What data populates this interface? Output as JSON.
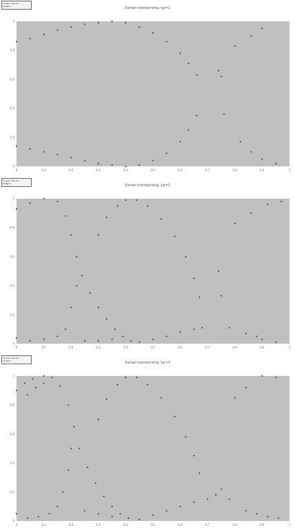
{
  "chart_data": [
    {
      "type": "scatter",
      "title": "Owner-membership, kp=1",
      "badge": "Cluster theorem\nbadge 1",
      "xlim": [
        0,
        1
      ],
      "ylim": [
        0,
        1
      ],
      "xticks": [
        "0",
        "0.1",
        "0.2",
        "0.3",
        "0.4",
        "0.5",
        "0.6",
        "0.7",
        "0.8",
        "0.9",
        "1"
      ],
      "yticks": [
        "0",
        "0.2",
        "0.4",
        "0.6",
        "0.8",
        "1"
      ],
      "background": "#c0c0c0",
      "grid": false,
      "series": [
        {
          "points": [
            [
              0,
              0.86
            ],
            [
              0.05,
              0.88
            ],
            [
              0.1,
              0.91
            ],
            [
              0.15,
              0.94
            ],
            [
              0.2,
              0.96
            ],
            [
              0.25,
              0.98
            ],
            [
              0.3,
              0.99
            ],
            [
              0.35,
              1.0
            ],
            [
              0.4,
              0.99
            ],
            [
              0.45,
              0.96
            ],
            [
              0.5,
              0.92
            ],
            [
              0.55,
              0.86
            ],
            [
              0.6,
              0.78
            ],
            [
              0.63,
              0.71
            ],
            [
              0.66,
              0.63
            ],
            [
              0.0,
              0.14
            ],
            [
              0.05,
              0.12
            ],
            [
              0.1,
              0.1
            ],
            [
              0.15,
              0.08
            ],
            [
              0.2,
              0.06
            ],
            [
              0.25,
              0.04
            ],
            [
              0.3,
              0.02
            ],
            [
              0.35,
              0.01
            ],
            [
              0.4,
              0.0
            ],
            [
              0.45,
              0.01
            ],
            [
              0.5,
              0.04
            ],
            [
              0.55,
              0.09
            ],
            [
              0.6,
              0.17
            ],
            [
              0.63,
              0.25
            ],
            [
              0.66,
              0.35
            ],
            [
              0.74,
              0.66
            ],
            [
              0.75,
              0.62
            ],
            [
              0.8,
              0.83
            ],
            [
              0.86,
              0.9
            ],
            [
              0.9,
              0.95
            ],
            [
              0.76,
              0.36
            ],
            [
              0.82,
              0.17
            ],
            [
              0.86,
              0.1
            ],
            [
              0.9,
              0.05
            ],
            [
              0.95,
              0.02
            ]
          ]
        }
      ]
    },
    {
      "type": "scatter",
      "title": "Owner-membership, kp=2",
      "badge": "Cluster theorem\nbadge 2",
      "xlim": [
        0,
        1
      ],
      "ylim": [
        0,
        1
      ],
      "xticks": [
        "0",
        "0.1",
        "0.2",
        "0.3",
        "0.4",
        "0.5",
        "0.6",
        "0.7",
        "0.8",
        "0.9",
        "1"
      ],
      "yticks": [
        "0",
        "0.2",
        "0.4",
        "0.6",
        "0.8",
        "1"
      ],
      "background": "#c0c0c0",
      "grid": false,
      "series": [
        {
          "points": [
            [
              0,
              0.93
            ],
            [
              0.05,
              0.97
            ],
            [
              0.1,
              1.0
            ],
            [
              0.15,
              0.98
            ],
            [
              0.18,
              0.88
            ],
            [
              0.2,
              0.75
            ],
            [
              0.22,
              0.6
            ],
            [
              0.24,
              0.47
            ],
            [
              0.27,
              0.35
            ],
            [
              0.3,
              0.25
            ],
            [
              0.33,
              0.17
            ],
            [
              0.36,
              0.1
            ],
            [
              0.39,
              0.05
            ],
            [
              0.42,
              0.02
            ],
            [
              0.45,
              0.01
            ],
            [
              0.5,
              0.03
            ],
            [
              0.55,
              0.05
            ],
            [
              0.6,
              0.08
            ],
            [
              0.65,
              0.1
            ],
            [
              0.68,
              0.11
            ],
            [
              0.3,
              0.75
            ],
            [
              0.33,
              0.87
            ],
            [
              0.37,
              0.95
            ],
            [
              0.4,
              0.99
            ],
            [
              0.44,
              0.99
            ],
            [
              0.48,
              0.95
            ],
            [
              0.53,
              0.86
            ],
            [
              0.58,
              0.74
            ],
            [
              0.62,
              0.6
            ],
            [
              0.65,
              0.45
            ],
            [
              0.67,
              0.32
            ],
            [
              0.22,
              0.4
            ],
            [
              0.2,
              0.25
            ],
            [
              0.18,
              0.1
            ],
            [
              0.15,
              0.05
            ],
            [
              0.1,
              0.03
            ],
            [
              0.05,
              0.02
            ],
            [
              0.0,
              0.04
            ],
            [
              0.25,
              0.02
            ],
            [
              0.3,
              0.02
            ],
            [
              0.35,
              0.03
            ],
            [
              0.74,
              0.5
            ],
            [
              0.75,
              0.33
            ],
            [
              0.8,
              0.83
            ],
            [
              0.86,
              0.9
            ],
            [
              0.92,
              0.96
            ],
            [
              0.97,
              0.98
            ],
            [
              0.78,
              0.11
            ],
            [
              0.84,
              0.07
            ],
            [
              0.88,
              0.05
            ],
            [
              0.9,
              0.03
            ],
            [
              0.95,
              0.01
            ]
          ]
        }
      ]
    },
    {
      "type": "scatter",
      "title": "Owner-membership, kp=3",
      "badge": "Cluster theorem\nbadge 3",
      "xlim": [
        0,
        1
      ],
      "ylim": [
        0,
        1
      ],
      "xticks": [
        "0",
        "0.1",
        "0.2",
        "0.3",
        "0.4",
        "0.5",
        "0.6",
        "0.7",
        "0.8",
        "0.9",
        "1"
      ],
      "yticks": [
        "0",
        "0.2",
        "0.4",
        "0.6",
        "0.8",
        "1"
      ],
      "background": "#c0c0c0",
      "grid": false,
      "series": [
        {
          "points": [
            [
              0,
              0.9
            ],
            [
              0.03,
              0.95
            ],
            [
              0.06,
              0.98
            ],
            [
              0.1,
              1.0
            ],
            [
              0.13,
              0.99
            ],
            [
              0.16,
              0.93
            ],
            [
              0.19,
              0.8
            ],
            [
              0.21,
              0.65
            ],
            [
              0.23,
              0.5
            ],
            [
              0.26,
              0.37
            ],
            [
              0.29,
              0.26
            ],
            [
              0.32,
              0.17
            ],
            [
              0.35,
              0.1
            ],
            [
              0.38,
              0.05
            ],
            [
              0.41,
              0.02
            ],
            [
              0.45,
              0.01
            ],
            [
              0.5,
              0.04
            ],
            [
              0.55,
              0.07
            ],
            [
              0.6,
              0.1
            ],
            [
              0.65,
              0.13
            ],
            [
              0.7,
              0.15
            ],
            [
              0.3,
              0.7
            ],
            [
              0.33,
              0.84
            ],
            [
              0.37,
              0.94
            ],
            [
              0.4,
              0.99
            ],
            [
              0.44,
              0.99
            ],
            [
              0.48,
              0.94
            ],
            [
              0.53,
              0.85
            ],
            [
              0.58,
              0.72
            ],
            [
              0.62,
              0.58
            ],
            [
              0.65,
              0.45
            ],
            [
              0.67,
              0.33
            ],
            [
              0.2,
              0.5
            ],
            [
              0.19,
              0.35
            ],
            [
              0.17,
              0.2
            ],
            [
              0.15,
              0.1
            ],
            [
              0.12,
              0.05
            ],
            [
              0.08,
              0.03
            ],
            [
              0.04,
              0.02
            ],
            [
              0.0,
              0.05
            ],
            [
              0.25,
              0.07
            ],
            [
              0.3,
              0.05
            ],
            [
              0.35,
              0.03
            ],
            [
              0.04,
              0.87
            ],
            [
              0.07,
              0.92
            ],
            [
              0.1,
              0.95
            ],
            [
              0.73,
              0.18
            ],
            [
              0.75,
              0.22
            ],
            [
              0.8,
              0.85
            ],
            [
              0.84,
              0.92
            ],
            [
              0.9,
              1.0
            ],
            [
              0.95,
              0.99
            ],
            [
              0.78,
              0.15
            ],
            [
              0.84,
              0.07
            ],
            [
              0.88,
              0.05
            ],
            [
              0.92,
              0.03
            ],
            [
              0.96,
              0.02
            ]
          ]
        }
      ]
    }
  ]
}
